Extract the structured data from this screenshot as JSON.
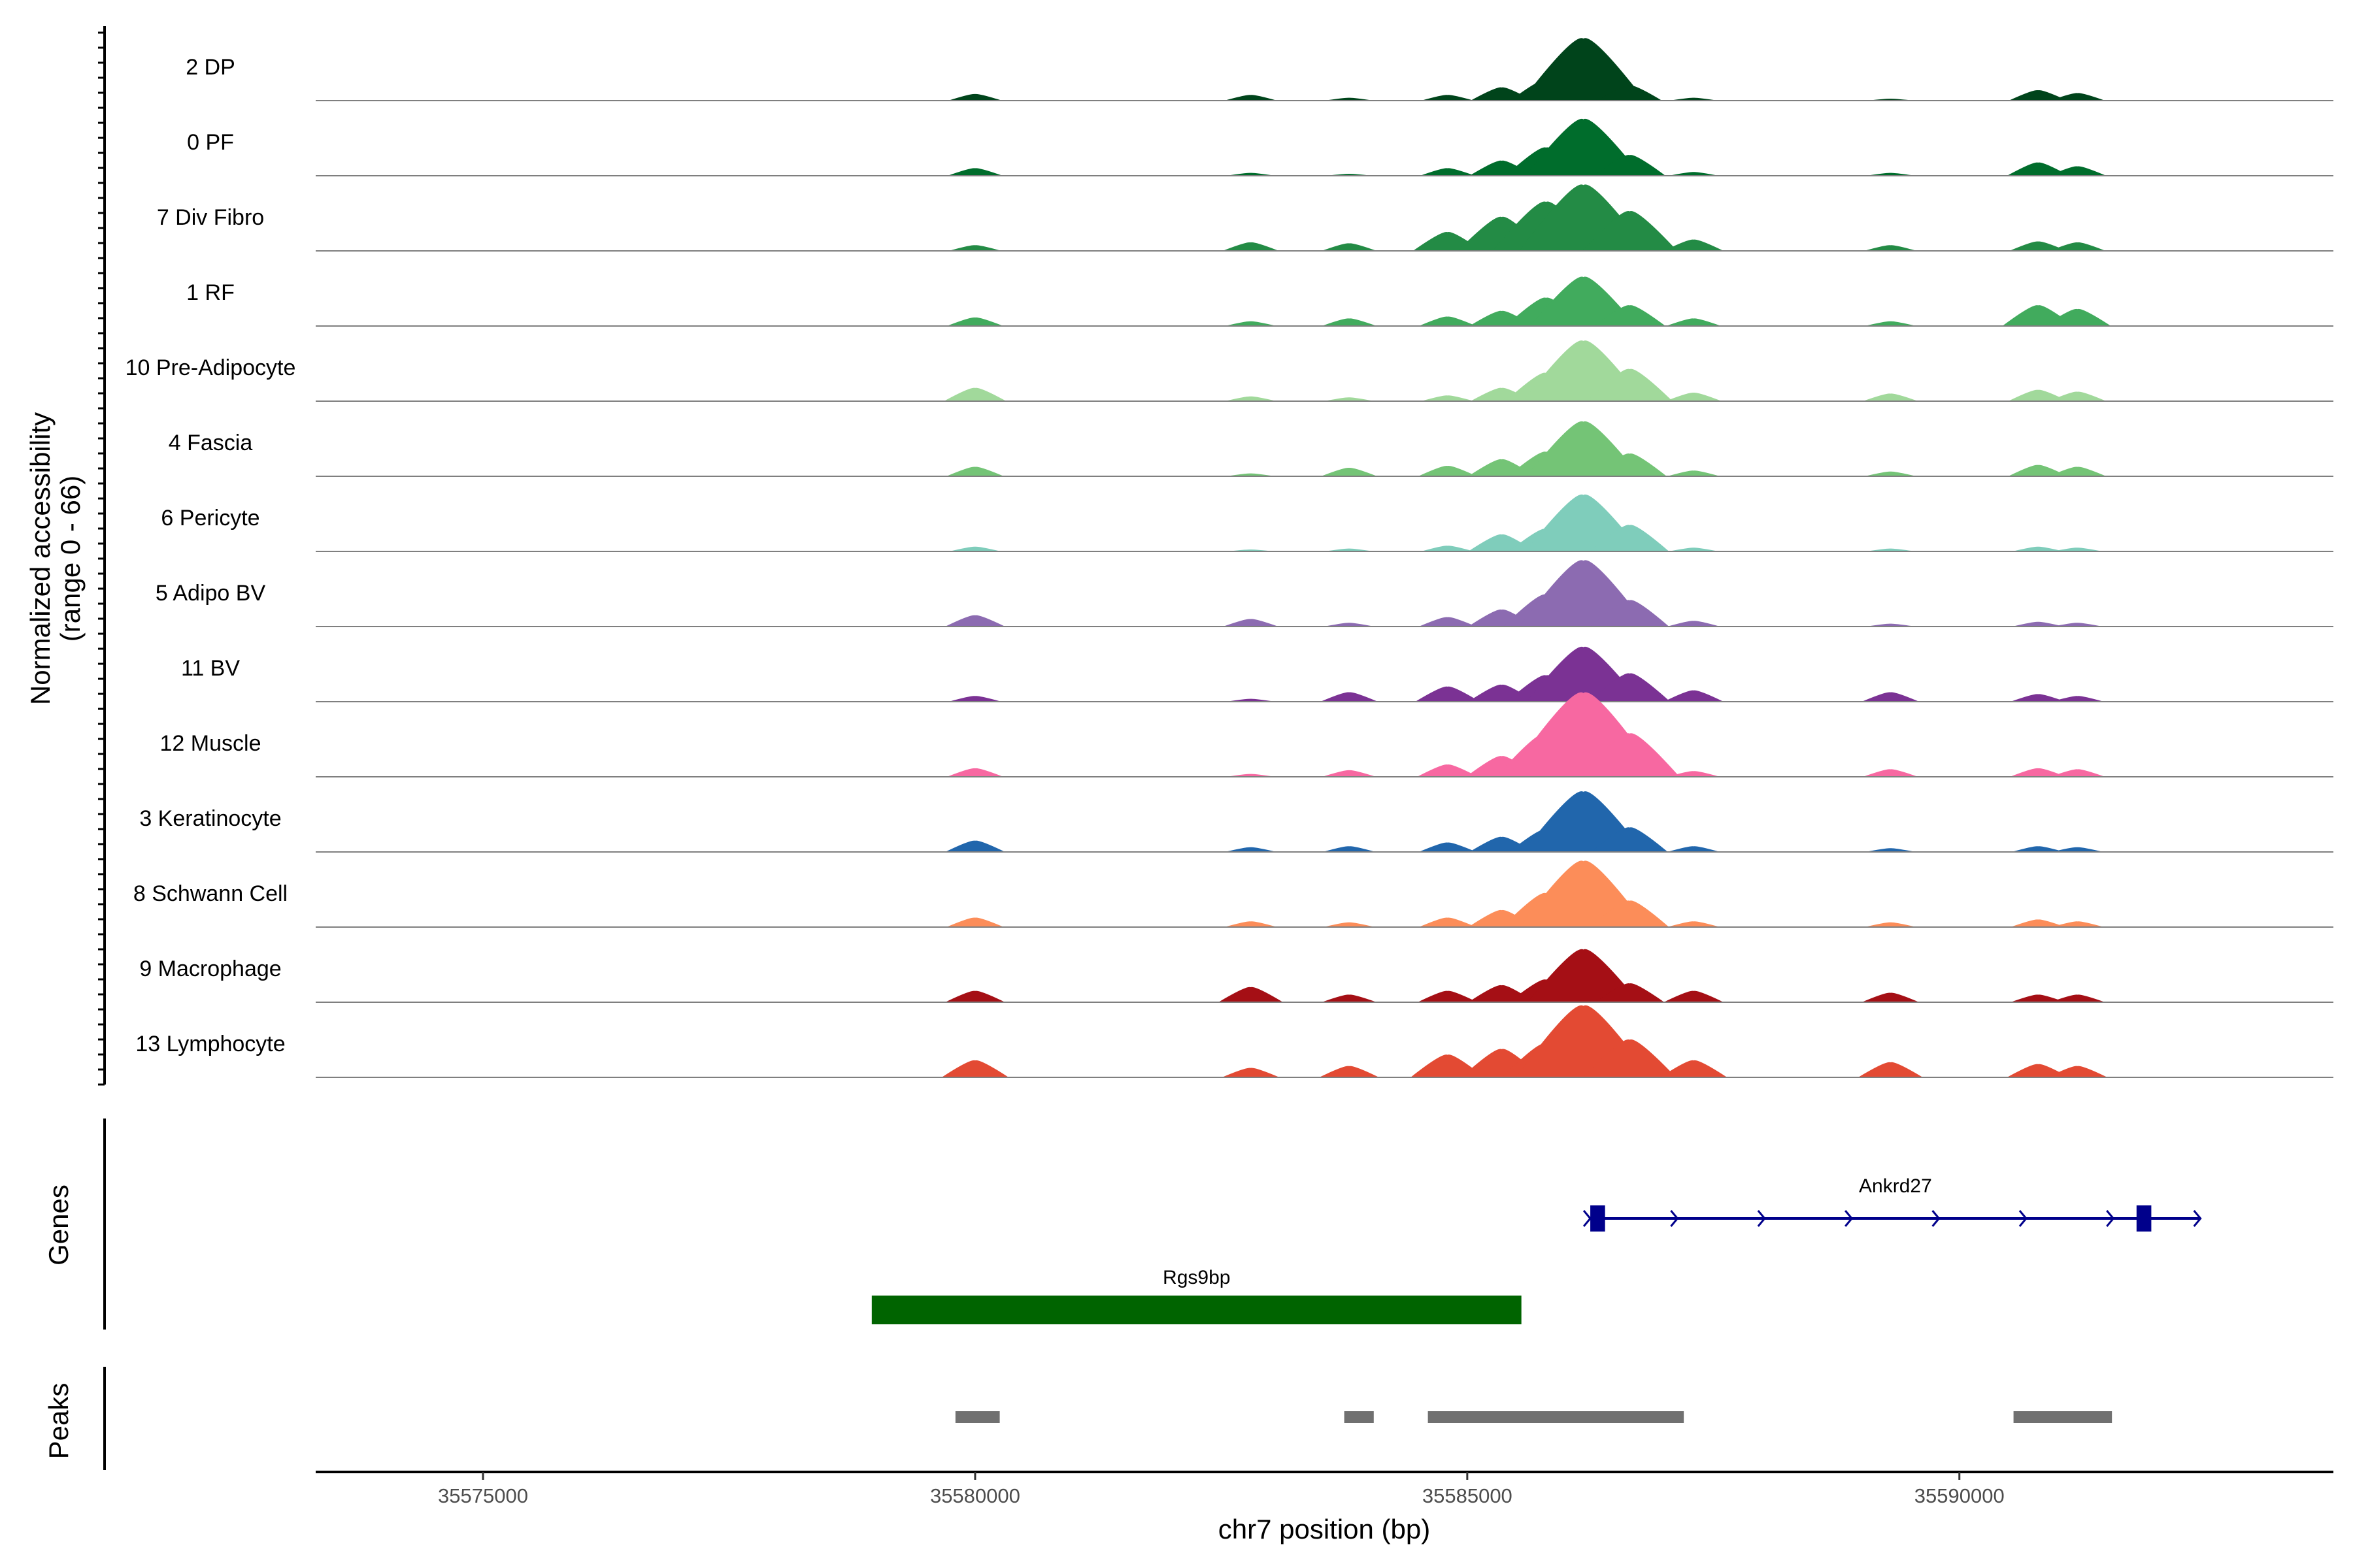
{
  "chart_data": {
    "type": "area",
    "title": "",
    "chromosome": "chr7",
    "xlabel": "chr7 position (bp)",
    "ylabel_line1": "Normalized accessibility",
    "ylabel_line2": "(range 0 - 66)",
    "ylim": [
      0,
      66
    ],
    "xlim": [
      35573300,
      35593800
    ],
    "x_ticks": [
      35575000,
      35580000,
      35585000,
      35590000
    ],
    "x_tick_labels": [
      "35575000",
      "35580000",
      "35585000",
      "35590000"
    ],
    "peak_profile_positions": [
      35580000,
      35582800,
      35583800,
      35584800,
      35585350,
      35585800,
      35586180,
      35586650,
      35587300,
      35589300,
      35590800,
      35591200
    ],
    "tracks": [
      {
        "name": "2 DP",
        "color": "#00441B",
        "values": [
          7,
          6,
          3,
          6,
          14,
          22,
          66,
          16,
          3,
          2,
          11,
          8
        ]
      },
      {
        "name": "0 PF",
        "color": "#006D2C",
        "values": [
          8,
          3,
          2,
          8,
          16,
          30,
          60,
          22,
          4,
          3,
          14,
          10
        ]
      },
      {
        "name": "7 Div Fibro",
        "color": "#238B45",
        "values": [
          6,
          9,
          8,
          20,
          36,
          52,
          70,
          42,
          12,
          6,
          10,
          9
        ]
      },
      {
        "name": "1 RF",
        "color": "#41AB5D",
        "values": [
          9,
          5,
          8,
          10,
          16,
          30,
          52,
          22,
          8,
          5,
          22,
          18
        ]
      },
      {
        "name": "10 Pre-Adipocyte",
        "color": "#A1D99B",
        "values": [
          14,
          5,
          4,
          6,
          14,
          30,
          64,
          34,
          9,
          8,
          12,
          10
        ]
      },
      {
        "name": "4 Fascia",
        "color": "#74C476",
        "values": [
          10,
          3,
          9,
          11,
          18,
          26,
          58,
          24,
          6,
          5,
          12,
          10
        ]
      },
      {
        "name": "6 Pericyte",
        "color": "#7FCDBB",
        "values": [
          5,
          2,
          3,
          6,
          18,
          24,
          60,
          28,
          4,
          3,
          5,
          4
        ]
      },
      {
        "name": "5 Adipo BV",
        "color": "#8C6BB1",
        "values": [
          12,
          8,
          4,
          10,
          18,
          34,
          70,
          28,
          6,
          3,
          5,
          4
        ]
      },
      {
        "name": "11 BV",
        "color": "#7B3294",
        "values": [
          6,
          3,
          10,
          16,
          18,
          28,
          58,
          30,
          12,
          10,
          8,
          6
        ]
      },
      {
        "name": "12 Muscle",
        "color": "#F768A1",
        "values": [
          9,
          3,
          7,
          13,
          22,
          46,
          90,
          46,
          6,
          8,
          9,
          8
        ]
      },
      {
        "name": "3 Keratinocyte",
        "color": "#2166AC",
        "values": [
          12,
          5,
          6,
          10,
          16,
          24,
          64,
          26,
          6,
          4,
          6,
          5
        ]
      },
      {
        "name": "8 Schwann Cell",
        "color": "#FC8D59",
        "values": [
          10,
          6,
          5,
          10,
          18,
          36,
          70,
          28,
          6,
          5,
          8,
          6
        ]
      },
      {
        "name": "9 Macrophage",
        "color": "#A50F15",
        "values": [
          12,
          16,
          8,
          12,
          18,
          24,
          56,
          20,
          12,
          10,
          8,
          8
        ]
      },
      {
        "name": "13 Lymphocyte",
        "color": "#E34A33",
        "values": [
          18,
          10,
          12,
          24,
          30,
          36,
          76,
          40,
          18,
          16,
          14,
          12
        ]
      }
    ],
    "genes": [
      {
        "name": "Ankrd27",
        "start": 35586250,
        "end": 35592450,
        "strand": "+",
        "color": "#00008B",
        "exons": [
          [
            35586250,
            35586400
          ],
          [
            35591800,
            35591950
          ]
        ]
      },
      {
        "name": "Rgs9bp",
        "start": 35578950,
        "end": 35585550,
        "strand": "",
        "color": "#006400"
      }
    ],
    "peaks_color": "#707070",
    "peaks": [
      [
        35579800,
        35580250
      ],
      [
        35583750,
        35584050
      ],
      [
        35584600,
        35587200
      ],
      [
        35590550,
        35591550
      ]
    ],
    "panel_labels": {
      "genes": "Genes",
      "peaks": "Peaks"
    }
  }
}
